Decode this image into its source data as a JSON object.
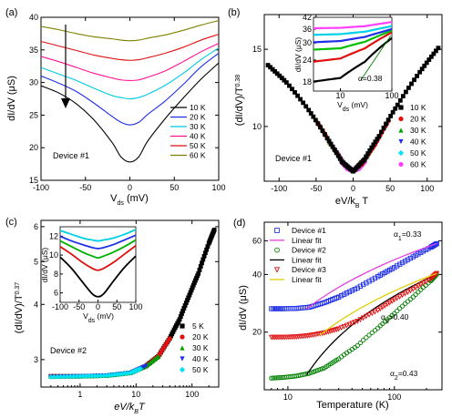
{
  "chart_data": [
    {
      "panel_label": "(a)",
      "type": "line",
      "xlabel": "V",
      "xlabel_sub": "ds",
      "xlabel_unit": "(mV)",
      "ylabel": "dI/dV (μS)",
      "xlim": [
        -100,
        100
      ],
      "ylim": [
        15,
        40
      ],
      "xticks": [
        -100,
        -50,
        0,
        50,
        100
      ],
      "yticks": [
        15,
        20,
        25,
        30,
        35,
        40
      ],
      "device": "Device #1",
      "arrow": "downward, increasing T",
      "legend_position": "right-center",
      "series": [
        {
          "name": "10 K",
          "color": "#000000",
          "x": [
            -100,
            -80,
            -60,
            -40,
            -20,
            -10,
            0,
            10,
            20,
            40,
            60,
            80,
            100
          ],
          "y": [
            29.5,
            28.4,
            26.7,
            24.2,
            20.8,
            18.6,
            17.8,
            18.6,
            21,
            24.5,
            27.6,
            30.5,
            33
          ]
        },
        {
          "name": "20 K",
          "color": "#1f2fe8",
          "x": [
            -100,
            -80,
            -60,
            -40,
            -20,
            -10,
            0,
            10,
            20,
            40,
            60,
            80,
            100
          ],
          "y": [
            31,
            29.9,
            28.6,
            26.8,
            24.8,
            23.9,
            23.5,
            23.9,
            25.1,
            27.2,
            29.7,
            32.4,
            34.5
          ]
        },
        {
          "name": "30 K",
          "color": "#00c8e0",
          "x": [
            -100,
            -80,
            -60,
            -40,
            -20,
            -10,
            0,
            10,
            20,
            40,
            60,
            80,
            100
          ],
          "y": [
            32.3,
            31.3,
            30.3,
            29.1,
            28,
            27.7,
            27.5,
            27.7,
            28.2,
            29.6,
            31.4,
            33.5,
            35.3
          ]
        },
        {
          "name": "40 K",
          "color": "#ff1493",
          "x": [
            -100,
            -80,
            -60,
            -40,
            -20,
            -10,
            0,
            10,
            20,
            40,
            60,
            80,
            100
          ],
          "y": [
            34,
            33.2,
            32.3,
            31.4,
            30.7,
            30.4,
            30.3,
            30.4,
            30.8,
            31.8,
            33.2,
            34.7,
            36
          ]
        },
        {
          "name": "50 K",
          "color": "#e01010",
          "x": [
            -100,
            -80,
            -60,
            -40,
            -20,
            -10,
            0,
            10,
            20,
            40,
            60,
            80,
            100
          ],
          "y": [
            36.3,
            35.6,
            34.9,
            34.2,
            33.7,
            33.5,
            33.4,
            33.5,
            33.8,
            34.5,
            35.4,
            36.5,
            37.4
          ]
        },
        {
          "name": "60 K",
          "color": "#808000",
          "x": [
            -100,
            -80,
            -60,
            -40,
            -20,
            -10,
            0,
            10,
            20,
            40,
            60,
            80,
            100
          ],
          "y": [
            38.6,
            38.1,
            37.5,
            37,
            36.7,
            36.5,
            36.4,
            36.5,
            36.8,
            37.3,
            38,
            38.8,
            39.5
          ]
        }
      ]
    },
    {
      "panel_label": "(b)",
      "type": "scatter",
      "xlabel": "eV/k",
      "xlabel_sub": "B",
      "xlabel_tail": "T",
      "ylabel": "(dI/dV)/T",
      "ylabel_sup": "0.38",
      "xlim": [
        -120,
        120
      ],
      "ylim": [
        7.5,
        18
      ],
      "xticks": [
        -100,
        -50,
        0,
        50,
        100
      ],
      "yticks": [
        10,
        15
      ],
      "scale": "log-y",
      "device": "Device #1",
      "legend_position": "right",
      "series": [
        {
          "name": "10 K",
          "color": "#000000",
          "marker": "square",
          "x": [
            -115,
            -90,
            -60,
            -35,
            -15,
            0,
            15,
            35,
            60,
            90,
            115
          ],
          "y": [
            13.8,
            12.6,
            10.9,
            9.4,
            8.3,
            7.9,
            8.4,
            9.5,
            11.2,
            13.3,
            15.1
          ]
        },
        {
          "name": "20 K",
          "color": "#e01010",
          "marker": "circle",
          "x": [
            -48,
            -30,
            -12,
            0,
            12,
            30,
            48
          ],
          "y": [
            10.2,
            9.1,
            8.2,
            7.9,
            8.2,
            9.1,
            10.3
          ]
        },
        {
          "name": "30 K",
          "color": "#00a000",
          "marker": "triangle-up",
          "x": [
            -32,
            -16,
            0,
            16,
            32
          ],
          "y": [
            9.2,
            8.4,
            7.9,
            8.4,
            9.3
          ]
        },
        {
          "name": "40 K",
          "color": "#1f2fe8",
          "marker": "triangle-down",
          "x": [
            -24,
            -12,
            0,
            12,
            24
          ],
          "y": [
            8.8,
            8.2,
            7.9,
            8.2,
            8.8
          ]
        },
        {
          "name": "50 K",
          "color": "#00e0f0",
          "marker": "diamond",
          "x": [
            -19,
            -9,
            0,
            9,
            19
          ],
          "y": [
            8.5,
            8.1,
            7.9,
            8.1,
            8.5
          ]
        },
        {
          "name": "60 K",
          "color": "#ff40ff",
          "marker": "circle",
          "x": [
            -16,
            -8,
            0,
            8,
            16
          ],
          "y": [
            8.3,
            8,
            7.9,
            8,
            8.3
          ]
        }
      ],
      "inset": {
        "xlabel": "V",
        "xlabel_sub": "ds",
        "xlabel_unit": "(mV)",
        "ylabel": "dI/dV (μS)",
        "scale": "log-log",
        "xlim": [
          3,
          100
        ],
        "ylim": [
          16,
          42
        ],
        "xticks": [
          10,
          100
        ],
        "yticks": [
          18,
          24,
          30,
          36,
          42
        ],
        "annotation": "α=0.38",
        "curves": [
          {
            "color": "#000000",
            "x": [
              3,
              10,
              30,
              100
            ],
            "y": [
              18.1,
              19,
              23.5,
              32
            ]
          },
          {
            "color": "#e01010",
            "x": [
              3,
              10,
              30,
              100
            ],
            "y": [
              23.5,
              24.5,
              28,
              34.5
            ]
          },
          {
            "color": "#00c000",
            "x": [
              3,
              10,
              30,
              100
            ],
            "y": [
              27.5,
              28,
              30.5,
              35.3
            ]
          },
          {
            "color": "#1f2fe8",
            "x": [
              3,
              10,
              30,
              100
            ],
            "y": [
              30.3,
              30.8,
              32.5,
              36
            ]
          },
          {
            "color": "#00d0e8",
            "x": [
              3,
              10,
              30,
              100
            ],
            "y": [
              33.4,
              33.7,
              34.8,
              37.4
            ]
          },
          {
            "color": "#ff40ff",
            "x": [
              3,
              10,
              30,
              100
            ],
            "y": [
              36.4,
              36.6,
              37.4,
              39.5
            ]
          }
        ]
      }
    },
    {
      "panel_label": "(c)",
      "type": "scatter",
      "xlabel": "eV/k",
      "xlabel_sub": "B",
      "xlabel_tail": "T",
      "ylabel": "(dI/dV)/T",
      "ylabel_sup": "0.37",
      "scale": "log-log",
      "xlim": [
        0.2,
        300
      ],
      "ylim": [
        2.6,
        6.2
      ],
      "xticks": [
        1,
        10,
        100
      ],
      "xticklabels": [
        "1",
        "10",
        "100"
      ],
      "yticks": [
        3,
        4,
        5,
        6
      ],
      "device": "Device #2",
      "legend_position": "bottom-right",
      "series": [
        {
          "name": "5 K",
          "color": "#000000",
          "marker": "square",
          "x": [
            0.3,
            1,
            3,
            8,
            15,
            25,
            40,
            60,
            90,
            130,
            200,
            250
          ],
          "y": [
            2.75,
            2.75,
            2.76,
            2.8,
            2.9,
            3.05,
            3.35,
            3.7,
            4.2,
            4.7,
            5.5,
            5.9
          ]
        },
        {
          "name": "20 K",
          "color": "#e01010",
          "marker": "circle",
          "x": [
            0.3,
            1,
            3,
            8,
            15,
            25,
            40
          ],
          "y": [
            2.75,
            2.75,
            2.76,
            2.8,
            2.9,
            3.05,
            3.35
          ]
        },
        {
          "name": "30 K",
          "color": "#00a000",
          "marker": "triangle-up",
          "x": [
            0.3,
            1,
            3,
            8,
            15,
            25
          ],
          "y": [
            2.75,
            2.75,
            2.76,
            2.8,
            2.9,
            3.05
          ]
        },
        {
          "name": "40 K",
          "color": "#1f2fe8",
          "marker": "triangle-down",
          "x": [
            0.3,
            1,
            3,
            8,
            15
          ],
          "y": [
            2.74,
            2.75,
            2.76,
            2.8,
            2.9
          ]
        },
        {
          "name": "50 K",
          "color": "#00e0f0",
          "marker": "diamond",
          "x": [
            0.3,
            1,
            3,
            8,
            12
          ],
          "y": [
            2.74,
            2.75,
            2.76,
            2.8,
            2.86
          ]
        }
      ],
      "inset": {
        "xlabel": "V",
        "xlabel_sub": "ds",
        "xlabel_unit": "(mV)",
        "ylabel": "dI/dV (μS)",
        "xlim": [
          -100,
          100
        ],
        "ylim": [
          5,
          13
        ],
        "xticks": [
          -100,
          -50,
          0,
          50,
          100
        ],
        "yticks": [
          6,
          8,
          10,
          12
        ],
        "curves": [
          {
            "color": "#000000",
            "x": [
              -100,
              -70,
              -40,
              -15,
              0,
              15,
              40,
              70,
              100
            ],
            "y": [
              9.8,
              8.6,
              7.1,
              5.9,
              5.6,
              5.9,
              7.2,
              8.7,
              9.9
            ]
          },
          {
            "color": "#e01010",
            "x": [
              -100,
              -70,
              -40,
              -15,
              0,
              15,
              40,
              70,
              100
            ],
            "y": [
              10.9,
              10.1,
              9.2,
              8.6,
              8.4,
              8.6,
              9.2,
              10.1,
              11
            ]
          },
          {
            "color": "#00b000",
            "x": [
              -100,
              -70,
              -40,
              -15,
              0,
              15,
              40,
              70,
              100
            ],
            "y": [
              11.5,
              10.9,
              10.3,
              9.9,
              9.7,
              9.9,
              10.3,
              10.9,
              11.6
            ]
          },
          {
            "color": "#1f2fe8",
            "x": [
              -100,
              -70,
              -40,
              -15,
              0,
              15,
              40,
              70,
              100
            ],
            "y": [
              12,
              11.5,
              11.1,
              10.8,
              10.7,
              10.8,
              11.1,
              11.6,
              12.1
            ]
          },
          {
            "color": "#00d0e8",
            "x": [
              -100,
              -70,
              -40,
              -15,
              0,
              15,
              40,
              70,
              100
            ],
            "y": [
              12.6,
              12.2,
              11.8,
              11.6,
              11.5,
              11.6,
              11.8,
              12.2,
              12.7
            ]
          }
        ]
      }
    },
    {
      "panel_label": "(d)",
      "type": "scatter",
      "xlabel": "Temperature (K)",
      "ylabel": "dI/dV (μS)",
      "scale": "log-log",
      "xlim": [
        6,
        280
      ],
      "ylim": [
        10,
        75
      ],
      "xticks": [
        10,
        100
      ],
      "yticks": [
        20,
        40,
        60
      ],
      "legend_position": "top-left",
      "annotations": [
        {
          "text": "α",
          "sub": "1",
          "tail": "=0.33",
          "color": "#1f2fe8"
        },
        {
          "text": "α",
          "sub": "3",
          "tail": "=0.40",
          "color": "#e01010"
        },
        {
          "text": "α",
          "sub": "2",
          "tail": "=0.43",
          "color": "#008000"
        }
      ],
      "series": [
        {
          "name": "Device #1",
          "color": "#1f2fe8",
          "marker": "square-open",
          "x": [
            7,
            9,
            12,
            16,
            22,
            30,
            45,
            70,
            100,
            150,
            220,
            250
          ],
          "y": [
            26.5,
            26.5,
            26.6,
            27,
            28.5,
            30.5,
            34,
            39,
            43.5,
            49.5,
            55.5,
            58
          ]
        },
        {
          "name": "Linear fit",
          "color": "#e040e0",
          "marker": "line",
          "x": [
            15,
            250
          ],
          "y": [
            26.5,
            58
          ]
        },
        {
          "name": "Device #2",
          "color": "#008000",
          "marker": "circle-open",
          "x": [
            7,
            9,
            12,
            16,
            22,
            30,
            45,
            70,
            100,
            150,
            220,
            250
          ],
          "y": [
            11.5,
            11.6,
            11.8,
            12.2,
            13,
            14.5,
            17,
            21,
            25,
            30.5,
            37,
            40
          ]
        },
        {
          "name": "Linear fit",
          "color": "#000000",
          "marker": "line",
          "x": [
            15,
            250
          ],
          "y": [
            12,
            40
          ]
        },
        {
          "name": "Device #3",
          "color": "#e01010",
          "marker": "triangle-open",
          "x": [
            7,
            9,
            12,
            16,
            22,
            30,
            45,
            70,
            100,
            150,
            220,
            250
          ],
          "y": [
            18.8,
            18.8,
            18.9,
            19.2,
            19.8,
            20.8,
            22.8,
            26,
            29.5,
            33.5,
            38,
            40.5
          ]
        },
        {
          "name": "Linear fit",
          "color": "#e0d000",
          "marker": "line",
          "x": [
            20,
            250
          ],
          "y": [
            19.3,
            40.5
          ]
        }
      ]
    }
  ]
}
